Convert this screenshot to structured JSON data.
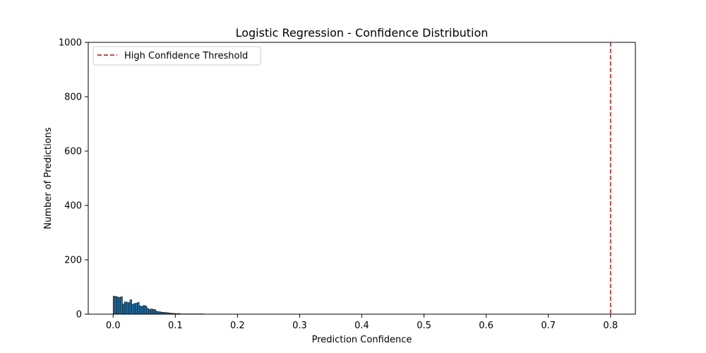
{
  "chart_data": {
    "type": "bar",
    "title": "Logistic Regression - Confidence Distribution",
    "xlabel": "Prediction Confidence",
    "ylabel": "Number of Predictions",
    "xlim": [
      -0.04,
      0.84
    ],
    "ylim": [
      0,
      1000
    ],
    "xticks": [
      "0.0",
      "0.1",
      "0.2",
      "0.3",
      "0.4",
      "0.5",
      "0.6",
      "0.7",
      "0.8"
    ],
    "yticks": [
      "0",
      "200",
      "400",
      "600",
      "800",
      "1000"
    ],
    "grid": false,
    "legend_position": "top-left",
    "bar_color": "#1f77b4",
    "bar_edge_color": "#000000",
    "bin_width": 0.003,
    "bins": [
      {
        "x": 0.0,
        "y": 66
      },
      {
        "x": 0.003,
        "y": 65
      },
      {
        "x": 0.006,
        "y": 63
      },
      {
        "x": 0.009,
        "y": 61
      },
      {
        "x": 0.012,
        "y": 64
      },
      {
        "x": 0.015,
        "y": 37
      },
      {
        "x": 0.018,
        "y": 45
      },
      {
        "x": 0.021,
        "y": 44
      },
      {
        "x": 0.024,
        "y": 42
      },
      {
        "x": 0.027,
        "y": 53
      },
      {
        "x": 0.03,
        "y": 36
      },
      {
        "x": 0.033,
        "y": 39
      },
      {
        "x": 0.036,
        "y": 40
      },
      {
        "x": 0.039,
        "y": 43
      },
      {
        "x": 0.042,
        "y": 30
      },
      {
        "x": 0.045,
        "y": 28
      },
      {
        "x": 0.048,
        "y": 32
      },
      {
        "x": 0.051,
        "y": 30
      },
      {
        "x": 0.054,
        "y": 22
      },
      {
        "x": 0.057,
        "y": 17
      },
      {
        "x": 0.06,
        "y": 19
      },
      {
        "x": 0.063,
        "y": 18
      },
      {
        "x": 0.066,
        "y": 16
      },
      {
        "x": 0.069,
        "y": 10
      },
      {
        "x": 0.072,
        "y": 9
      },
      {
        "x": 0.075,
        "y": 8
      },
      {
        "x": 0.078,
        "y": 7
      },
      {
        "x": 0.081,
        "y": 6
      },
      {
        "x": 0.084,
        "y": 6
      },
      {
        "x": 0.087,
        "y": 5
      },
      {
        "x": 0.09,
        "y": 4
      },
      {
        "x": 0.093,
        "y": 3
      },
      {
        "x": 0.096,
        "y": 3
      },
      {
        "x": 0.099,
        "y": 2
      },
      {
        "x": 0.102,
        "y": 2
      },
      {
        "x": 0.105,
        "y": 2
      },
      {
        "x": 0.108,
        "y": 1
      },
      {
        "x": 0.111,
        "y": 1
      },
      {
        "x": 0.114,
        "y": 1
      },
      {
        "x": 0.117,
        "y": 1
      },
      {
        "x": 0.12,
        "y": 1
      },
      {
        "x": 0.123,
        "y": 1
      },
      {
        "x": 0.126,
        "y": 1
      },
      {
        "x": 0.129,
        "y": 1
      },
      {
        "x": 0.132,
        "y": 1
      },
      {
        "x": 0.135,
        "y": 1
      },
      {
        "x": 0.138,
        "y": 1
      },
      {
        "x": 0.141,
        "y": 1
      },
      {
        "x": 0.144,
        "y": 1
      }
    ],
    "threshold": {
      "x": 0.8,
      "label": "High Confidence Threshold",
      "color": "#d62728",
      "style": "dashed"
    }
  }
}
